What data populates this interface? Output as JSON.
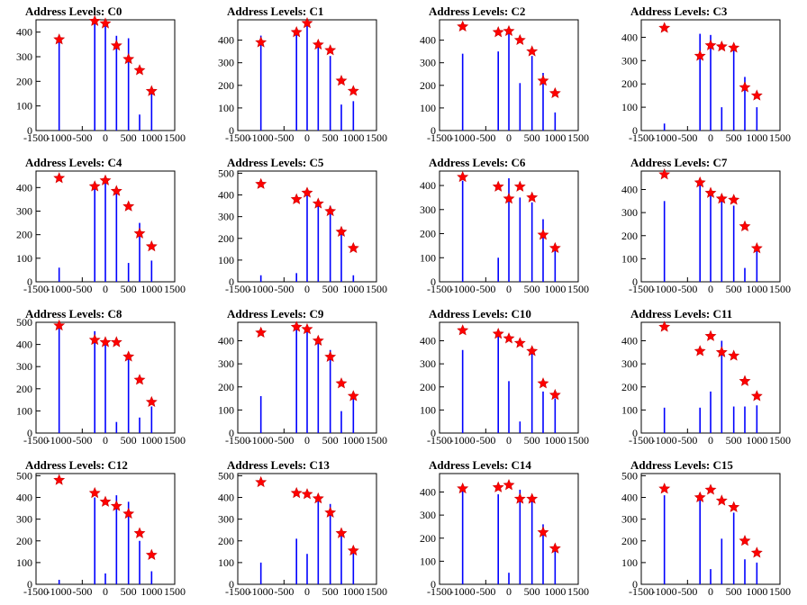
{
  "style": {
    "bar_color": "#0000ff",
    "marker_color": "#ff0000",
    "axis_color": "#000000"
  },
  "chart_data": [
    {
      "type": "bar",
      "title": "Address Levels: C0",
      "xlim": [
        -1500,
        1500
      ],
      "ylim": [
        0,
        450
      ],
      "xticks": [
        -1500,
        -1000,
        -500,
        0,
        500,
        1000,
        1500
      ],
      "yticks": [
        0,
        100,
        200,
        300,
        400
      ],
      "bars": [
        [
          -1000,
          370
        ],
        [
          -230,
          440
        ],
        [
          0,
          430
        ],
        [
          240,
          385
        ],
        [
          500,
          375
        ],
        [
          740,
          65
        ],
        [
          1000,
          150
        ]
      ],
      "peaks": [
        [
          -1000,
          370
        ],
        [
          -230,
          445
        ],
        [
          0,
          435
        ],
        [
          240,
          345
        ],
        [
          500,
          290
        ],
        [
          740,
          245
        ],
        [
          1000,
          160
        ]
      ]
    },
    {
      "type": "bar",
      "title": "Address Levels: C1",
      "xlim": [
        -1500,
        1500
      ],
      "ylim": [
        0,
        490
      ],
      "xticks": [
        -1500,
        -1000,
        -500,
        0,
        500,
        1000,
        1500
      ],
      "yticks": [
        0,
        100,
        200,
        300,
        400
      ],
      "bars": [
        [
          -1000,
          420
        ],
        [
          -230,
          440
        ],
        [
          0,
          470
        ],
        [
          240,
          385
        ],
        [
          500,
          330
        ],
        [
          740,
          115
        ],
        [
          1000,
          130
        ]
      ],
      "peaks": [
        [
          -1000,
          390
        ],
        [
          -230,
          435
        ],
        [
          0,
          475
        ],
        [
          240,
          380
        ],
        [
          500,
          355
        ],
        [
          740,
          220
        ],
        [
          1000,
          175
        ]
      ]
    },
    {
      "type": "bar",
      "title": "Address Levels: C2",
      "xlim": [
        -1500,
        1500
      ],
      "ylim": [
        0,
        490
      ],
      "xticks": [
        -1500,
        -1000,
        -500,
        0,
        500,
        1000,
        1500
      ],
      "yticks": [
        0,
        100,
        200,
        300,
        400
      ],
      "bars": [
        [
          -1000,
          340
        ],
        [
          -230,
          350
        ],
        [
          0,
          440
        ],
        [
          240,
          210
        ],
        [
          500,
          330
        ],
        [
          740,
          255
        ],
        [
          1000,
          80
        ]
      ],
      "peaks": [
        [
          -1000,
          460
        ],
        [
          -230,
          435
        ],
        [
          0,
          440
        ],
        [
          240,
          400
        ],
        [
          500,
          350
        ],
        [
          740,
          220
        ],
        [
          1000,
          165
        ]
      ]
    },
    {
      "type": "bar",
      "title": "Address Levels: C3",
      "xlim": [
        -1500,
        1500
      ],
      "ylim": [
        0,
        475
      ],
      "xticks": [
        -1500,
        -1000,
        -500,
        0,
        500,
        1000,
        1500
      ],
      "yticks": [
        0,
        100,
        200,
        300,
        400
      ],
      "bars": [
        [
          -1000,
          30
        ],
        [
          -230,
          415
        ],
        [
          0,
          410
        ],
        [
          240,
          100
        ],
        [
          500,
          365
        ],
        [
          740,
          230
        ],
        [
          1000,
          100
        ]
      ],
      "peaks": [
        [
          -1000,
          440
        ],
        [
          -230,
          320
        ],
        [
          0,
          365
        ],
        [
          240,
          360
        ],
        [
          500,
          355
        ],
        [
          740,
          185
        ],
        [
          1000,
          150
        ]
      ]
    },
    {
      "type": "bar",
      "title": "Address Levels: C4",
      "xlim": [
        -1500,
        1500
      ],
      "ylim": [
        0,
        470
      ],
      "xticks": [
        -1500,
        -1000,
        -500,
        0,
        500,
        1000,
        1500
      ],
      "yticks": [
        0,
        100,
        200,
        300,
        400
      ],
      "bars": [
        [
          -1000,
          60
        ],
        [
          -230,
          410
        ],
        [
          0,
          435
        ],
        [
          240,
          395
        ],
        [
          500,
          80
        ],
        [
          740,
          250
        ],
        [
          1000,
          90
        ]
      ],
      "peaks": [
        [
          -1000,
          440
        ],
        [
          -230,
          405
        ],
        [
          0,
          430
        ],
        [
          240,
          385
        ],
        [
          500,
          320
        ],
        [
          740,
          205
        ],
        [
          1000,
          150
        ]
      ]
    },
    {
      "type": "bar",
      "title": "Address Levels: C5",
      "xlim": [
        -1500,
        1500
      ],
      "ylim": [
        0,
        510
      ],
      "xticks": [
        -1500,
        -1000,
        -500,
        0,
        500,
        1000,
        1500
      ],
      "yticks": [
        0,
        100,
        200,
        300,
        400,
        500
      ],
      "bars": [
        [
          -1000,
          30
        ],
        [
          -230,
          40
        ],
        [
          0,
          420
        ],
        [
          240,
          350
        ],
        [
          500,
          350
        ],
        [
          740,
          250
        ],
        [
          1000,
          30
        ]
      ],
      "peaks": [
        [
          -1000,
          450
        ],
        [
          -230,
          380
        ],
        [
          0,
          410
        ],
        [
          240,
          360
        ],
        [
          500,
          325
        ],
        [
          740,
          230
        ],
        [
          1000,
          155
        ]
      ]
    },
    {
      "type": "bar",
      "title": "Address Levels: C6",
      "xlim": [
        -1500,
        1500
      ],
      "ylim": [
        0,
        460
      ],
      "xticks": [
        -1500,
        -1000,
        -500,
        0,
        500,
        1000,
        1500
      ],
      "yticks": [
        0,
        100,
        200,
        300,
        400
      ],
      "bars": [
        [
          -1000,
          420
        ],
        [
          -230,
          100
        ],
        [
          0,
          430
        ],
        [
          240,
          350
        ],
        [
          500,
          330
        ],
        [
          740,
          260
        ],
        [
          1000,
          140
        ]
      ],
      "peaks": [
        [
          -1000,
          435
        ],
        [
          -230,
          395
        ],
        [
          0,
          345
        ],
        [
          240,
          395
        ],
        [
          500,
          350
        ],
        [
          740,
          195
        ],
        [
          1000,
          140
        ]
      ]
    },
    {
      "type": "bar",
      "title": "Address Levels: C7",
      "xlim": [
        -1500,
        1500
      ],
      "ylim": [
        0,
        480
      ],
      "xticks": [
        -1500,
        -1000,
        -500,
        0,
        500,
        1000,
        1500
      ],
      "yticks": [
        0,
        100,
        200,
        300,
        400
      ],
      "bars": [
        [
          -1000,
          350
        ],
        [
          -230,
          430
        ],
        [
          0,
          400
        ],
        [
          240,
          370
        ],
        [
          500,
          330
        ],
        [
          740,
          60
        ],
        [
          1000,
          140
        ]
      ],
      "peaks": [
        [
          -1000,
          465
        ],
        [
          -230,
          430
        ],
        [
          0,
          385
        ],
        [
          240,
          360
        ],
        [
          500,
          355
        ],
        [
          740,
          240
        ],
        [
          1000,
          145
        ]
      ]
    },
    {
      "type": "bar",
      "title": "Address Levels: C8",
      "xlim": [
        -1500,
        1500
      ],
      "ylim": [
        0,
        500
      ],
      "xticks": [
        -1500,
        -1000,
        -500,
        0,
        500,
        1000,
        1500
      ],
      "yticks": [
        0,
        100,
        200,
        300,
        400,
        500
      ],
      "bars": [
        [
          -1000,
          480
        ],
        [
          -230,
          460
        ],
        [
          0,
          420
        ],
        [
          240,
          50
        ],
        [
          500,
          350
        ],
        [
          740,
          70
        ],
        [
          1000,
          120
        ]
      ],
      "peaks": [
        [
          -1000,
          485
        ],
        [
          -230,
          420
        ],
        [
          0,
          410
        ],
        [
          240,
          410
        ],
        [
          500,
          345
        ],
        [
          740,
          240
        ],
        [
          1000,
          140
        ]
      ]
    },
    {
      "type": "bar",
      "title": "Address Levels: C9",
      "xlim": [
        -1500,
        1500
      ],
      "ylim": [
        0,
        480
      ],
      "xticks": [
        -1500,
        -1000,
        -500,
        0,
        500,
        1000,
        1500
      ],
      "yticks": [
        0,
        100,
        200,
        300,
        400
      ],
      "bars": [
        [
          -1000,
          160
        ],
        [
          -230,
          460
        ],
        [
          0,
          450
        ],
        [
          240,
          400
        ],
        [
          500,
          360
        ],
        [
          740,
          95
        ],
        [
          1000,
          160
        ]
      ],
      "peaks": [
        [
          -1000,
          435
        ],
        [
          -230,
          460
        ],
        [
          0,
          450
        ],
        [
          240,
          400
        ],
        [
          500,
          330
        ],
        [
          740,
          215
        ],
        [
          1000,
          160
        ]
      ]
    },
    {
      "type": "bar",
      "title": "Address Levels: C10",
      "xlim": [
        -1500,
        1500
      ],
      "ylim": [
        0,
        480
      ],
      "xticks": [
        -1500,
        -1000,
        -500,
        0,
        500,
        1000,
        1500
      ],
      "yticks": [
        0,
        100,
        200,
        300,
        400
      ],
      "bars": [
        [
          -1000,
          360
        ],
        [
          -230,
          440
        ],
        [
          0,
          225
        ],
        [
          240,
          50
        ],
        [
          500,
          360
        ],
        [
          740,
          180
        ],
        [
          1000,
          150
        ]
      ],
      "peaks": [
        [
          -1000,
          445
        ],
        [
          -230,
          430
        ],
        [
          0,
          410
        ],
        [
          240,
          390
        ],
        [
          500,
          355
        ],
        [
          740,
          215
        ],
        [
          1000,
          165
        ]
      ]
    },
    {
      "type": "bar",
      "title": "Address Levels: C11",
      "xlim": [
        -1500,
        1500
      ],
      "ylim": [
        0,
        480
      ],
      "xticks": [
        -1500,
        -1000,
        -500,
        0,
        500,
        1000,
        1500
      ],
      "yticks": [
        0,
        100,
        200,
        300,
        400
      ],
      "bars": [
        [
          -1000,
          110
        ],
        [
          -230,
          110
        ],
        [
          0,
          180
        ],
        [
          240,
          400
        ],
        [
          500,
          115
        ],
        [
          740,
          115
        ],
        [
          1000,
          120
        ]
      ],
      "peaks": [
        [
          -1000,
          460
        ],
        [
          -230,
          355
        ],
        [
          0,
          420
        ],
        [
          240,
          350
        ],
        [
          500,
          335
        ],
        [
          740,
          225
        ],
        [
          1000,
          160
        ]
      ]
    },
    {
      "type": "bar",
      "title": "Address Levels: C12",
      "xlim": [
        -1500,
        1500
      ],
      "ylim": [
        0,
        510
      ],
      "xticks": [
        -1500,
        -1000,
        -500,
        0,
        500,
        1000,
        1500
      ],
      "yticks": [
        0,
        100,
        200,
        300,
        400,
        500
      ],
      "bars": [
        [
          -1000,
          20
        ],
        [
          -230,
          400
        ],
        [
          0,
          50
        ],
        [
          240,
          410
        ],
        [
          500,
          380
        ],
        [
          740,
          200
        ],
        [
          1000,
          60
        ]
      ],
      "peaks": [
        [
          -1000,
          480
        ],
        [
          -230,
          420
        ],
        [
          0,
          380
        ],
        [
          240,
          360
        ],
        [
          500,
          325
        ],
        [
          740,
          235
        ],
        [
          1000,
          135
        ]
      ]
    },
    {
      "type": "bar",
      "title": "Address Levels: C13",
      "xlim": [
        -1500,
        1500
      ],
      "ylim": [
        0,
        510
      ],
      "xticks": [
        -1500,
        -1000,
        -500,
        0,
        500,
        1000,
        1500
      ],
      "yticks": [
        0,
        100,
        200,
        300,
        400,
        500
      ],
      "bars": [
        [
          -1000,
          100
        ],
        [
          -230,
          210
        ],
        [
          0,
          140
        ],
        [
          240,
          400
        ],
        [
          500,
          370
        ],
        [
          740,
          230
        ],
        [
          1000,
          150
        ]
      ],
      "peaks": [
        [
          -1000,
          470
        ],
        [
          -230,
          420
        ],
        [
          0,
          415
        ],
        [
          240,
          395
        ],
        [
          500,
          330
        ],
        [
          740,
          235
        ],
        [
          1000,
          155
        ]
      ]
    },
    {
      "type": "bar",
      "title": "Address Levels: C14",
      "xlim": [
        -1500,
        1500
      ],
      "ylim": [
        0,
        480
      ],
      "xticks": [
        -1500,
        -1000,
        -500,
        0,
        500,
        1000,
        1500
      ],
      "yticks": [
        0,
        100,
        200,
        300,
        400
      ],
      "bars": [
        [
          -1000,
          420
        ],
        [
          -230,
          390
        ],
        [
          0,
          50
        ],
        [
          240,
          410
        ],
        [
          500,
          370
        ],
        [
          740,
          260
        ],
        [
          1000,
          150
        ]
      ],
      "peaks": [
        [
          -1000,
          415
        ],
        [
          -230,
          420
        ],
        [
          0,
          430
        ],
        [
          240,
          370
        ],
        [
          500,
          370
        ],
        [
          740,
          225
        ],
        [
          1000,
          155
        ]
      ]
    },
    {
      "type": "bar",
      "title": "Address Levels: C15",
      "xlim": [
        -1500,
        1500
      ],
      "ylim": [
        0,
        510
      ],
      "xticks": [
        -1500,
        -1000,
        -500,
        0,
        500,
        1000,
        1500
      ],
      "yticks": [
        0,
        100,
        200,
        300,
        400,
        500
      ],
      "bars": [
        [
          -1000,
          410
        ],
        [
          -230,
          420
        ],
        [
          0,
          70
        ],
        [
          240,
          210
        ],
        [
          500,
          330
        ],
        [
          740,
          115
        ],
        [
          1000,
          100
        ]
      ],
      "peaks": [
        [
          -1000,
          440
        ],
        [
          -230,
          400
        ],
        [
          0,
          435
        ],
        [
          240,
          385
        ],
        [
          500,
          355
        ],
        [
          740,
          200
        ],
        [
          1000,
          145
        ]
      ]
    }
  ]
}
